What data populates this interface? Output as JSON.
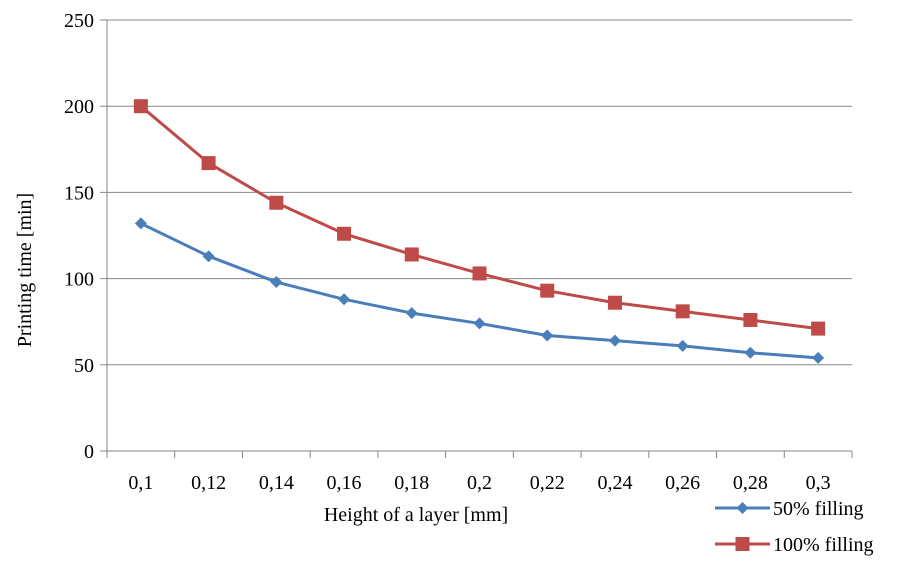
{
  "chart_data": {
    "type": "line",
    "title": "",
    "xlabel": "Height of a layer [mm]",
    "ylabel": "Printing time [min]",
    "categories": [
      "0,1",
      "0,12",
      "0,14",
      "0,16",
      "0,18",
      "0,2",
      "0,22",
      "0,24",
      "0,26",
      "0,28",
      "0,3"
    ],
    "ylim": [
      0,
      250
    ],
    "yticks": [
      0,
      50,
      100,
      150,
      200,
      250
    ],
    "grid": true,
    "legend_position": "bottom-right",
    "series": [
      {
        "name": "50% filling",
        "color": "#4a7ebb",
        "marker": "diamond",
        "values": [
          132,
          113,
          98,
          88,
          80,
          74,
          67,
          64,
          61,
          57,
          54
        ]
      },
      {
        "name": "100% filling",
        "color": "#be4b48",
        "marker": "square",
        "values": [
          200,
          167,
          144,
          126,
          114,
          103,
          93,
          86,
          81,
          76,
          71
        ]
      }
    ]
  }
}
